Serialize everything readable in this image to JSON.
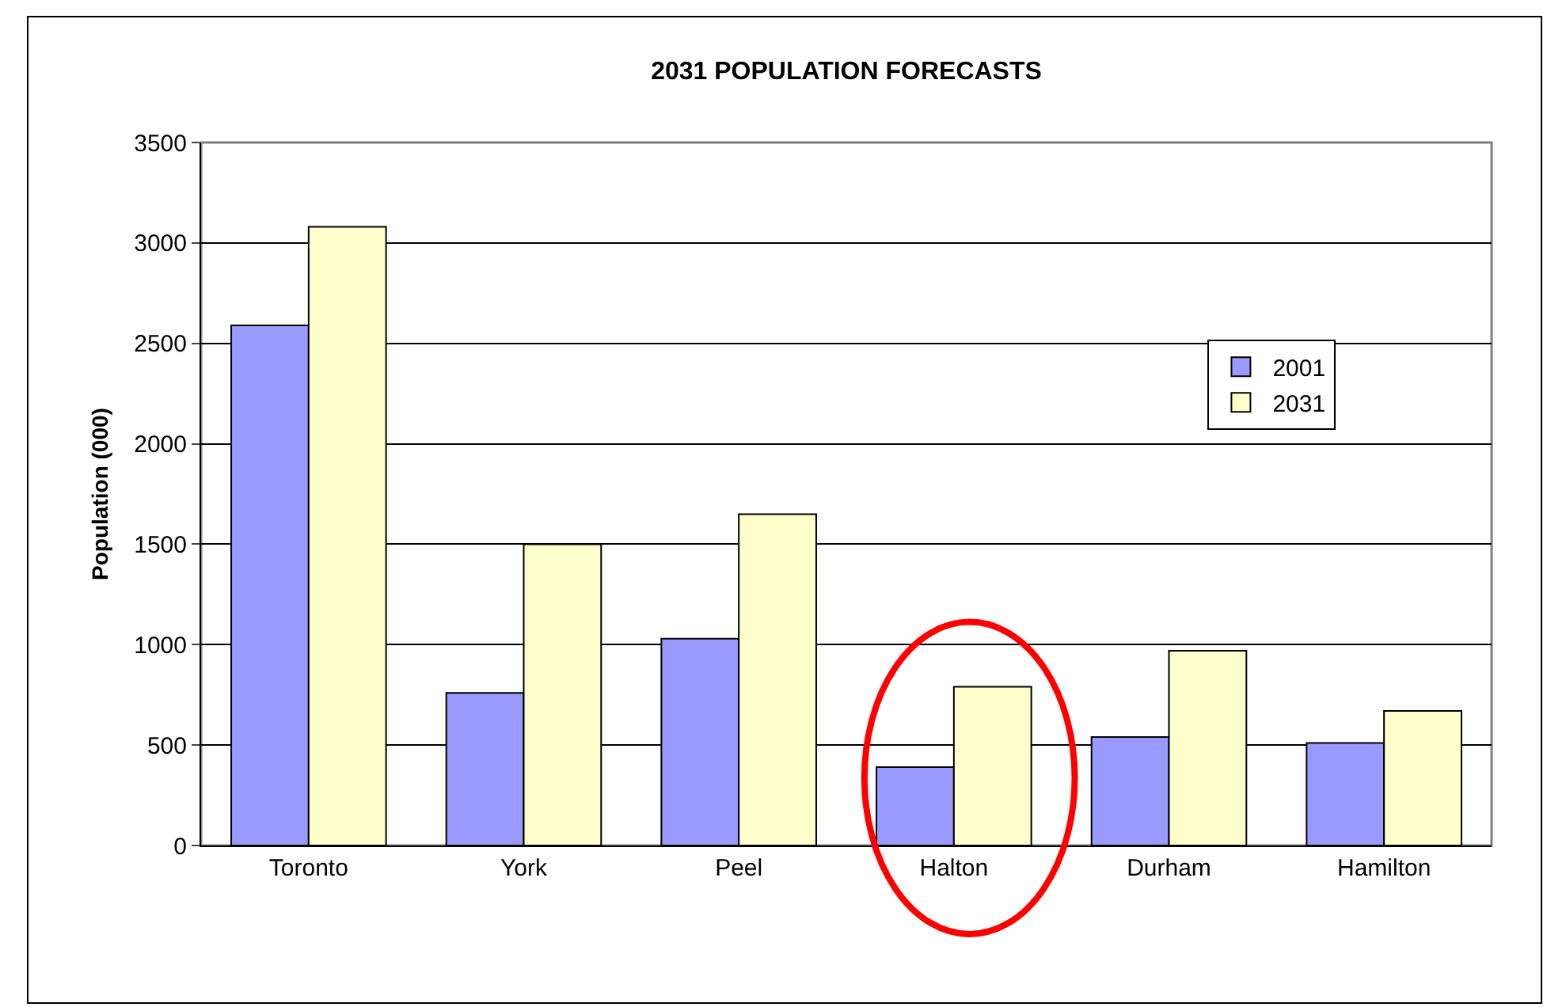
{
  "chart_data": {
    "type": "bar",
    "title": "2031 POPULATION FORECASTS",
    "ylabel": "Population (000)",
    "categories": [
      "Toronto",
      "York",
      "Peel",
      "Halton",
      "Durham",
      "Hamilton"
    ],
    "series": [
      {
        "name": "2001",
        "color": "#9999ff",
        "values": [
          2590,
          760,
          1030,
          390,
          540,
          510
        ]
      },
      {
        "name": "2031",
        "color": "#ffffcc",
        "values": [
          3080,
          1500,
          1650,
          790,
          970,
          670
        ]
      }
    ],
    "ylim": [
      0,
      3500
    ],
    "yticks": [
      0,
      500,
      1000,
      1500,
      2000,
      2500,
      3000,
      3500
    ],
    "grid": "y",
    "legend": "top right"
  }
}
